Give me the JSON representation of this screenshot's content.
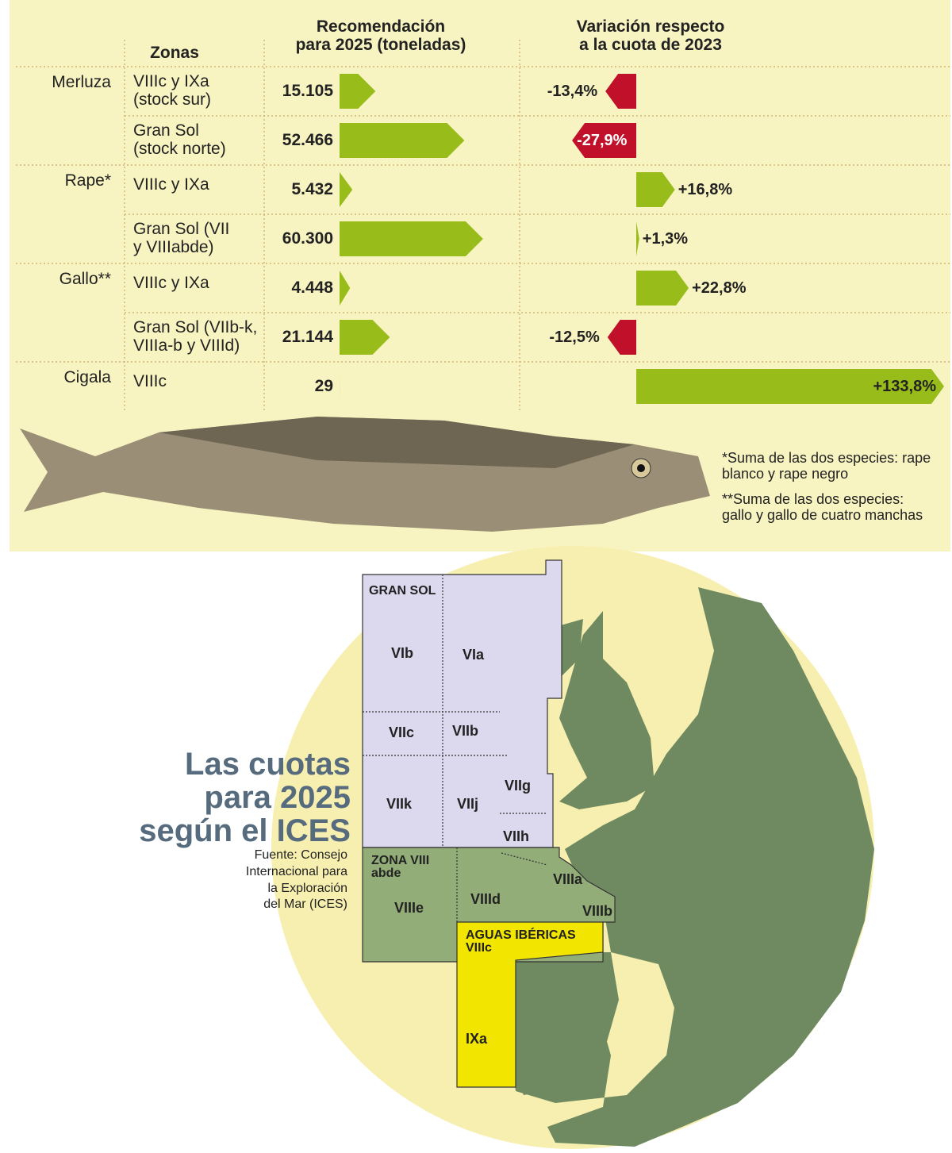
{
  "headers": {
    "zones": "Zonas",
    "tonnes": "Recomendación\npara 2025  (toneladas)",
    "variation": "Variación respecto\na la cuota de 2023"
  },
  "groups": [
    {
      "species": "Merluza",
      "rows": [
        {
          "zone": "VIIIc y IXa\n(stock sur)",
          "tonnes": 15105,
          "tonnes_label": "15.105",
          "variation": -13.4,
          "variation_label": "-13,4%"
        },
        {
          "zone": "Gran Sol\n(stock norte)",
          "tonnes": 52466,
          "tonnes_label": "52.466",
          "variation": -27.9,
          "variation_label": "-27,9%"
        }
      ]
    },
    {
      "species": "Rape*",
      "rows": [
        {
          "zone": "VIIIc y IXa",
          "tonnes": 5432,
          "tonnes_label": "5.432",
          "variation": 16.8,
          "variation_label": "+16,8%"
        },
        {
          "zone": "Gran Sol (VII\n y VIIIabde)",
          "tonnes": 60300,
          "tonnes_label": "60.300",
          "variation": 1.3,
          "variation_label": "+1,3%"
        }
      ]
    },
    {
      "species": "Gallo**",
      "rows": [
        {
          "zone": "VIIIc y IXa",
          "tonnes": 4448,
          "tonnes_label": "4.448",
          "variation": 22.8,
          "variation_label": "+22,8%"
        },
        {
          "zone": "Gran Sol (VIIb-k,\nVIIIa-b y VIIId)",
          "tonnes": 21144,
          "tonnes_label": "21.144",
          "variation": -12.5,
          "variation_label": "-12,5%"
        }
      ]
    },
    {
      "species": "Cigala",
      "rows": [
        {
          "zone": "VIIIc",
          "tonnes": 29,
          "tonnes_label": "29",
          "variation": 133.8,
          "variation_label": "+133,8%"
        }
      ]
    }
  ],
  "notes": [
    "*Suma de las dos especies: rape\nblanco y rape negro",
    "**Suma de las dos especies:\n gallo y gallo de cuatro manchas"
  ],
  "title": "Las cuotas\npara 2025\nsegún el ICES",
  "source": "Fuente: Consejo\nInternacional para\nla Exploración\ndel Mar (ICES)",
  "map": {
    "labels": [
      "GRAN SOL",
      "VIb",
      "VIa",
      "VIIc",
      "VIIb",
      "VIIk",
      "VIIj",
      "VIIg",
      "VIIh",
      "ZONA VIII\nabde",
      "VIIIe",
      "VIIId",
      "VIIIa",
      "VIIIb",
      "AGUAS IBÉRICAS\nVIIIc",
      "IXa"
    ]
  }
}
